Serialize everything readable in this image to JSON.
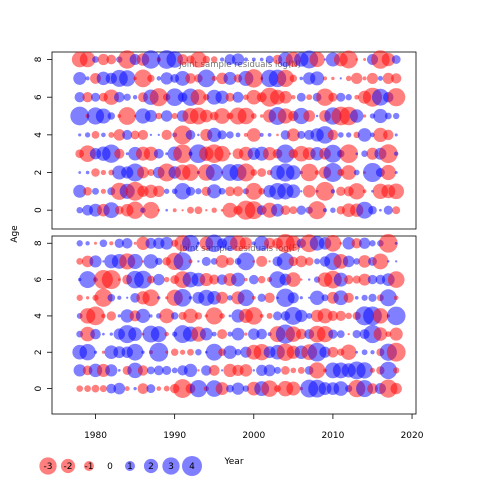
{
  "chart_data": {
    "type": "scatter",
    "title": "",
    "xlabel": "Year",
    "ylabel": "Age",
    "xlim": [
      1974.5,
      2020.5
    ],
    "x_ticks": [
      1980,
      1990,
      2000,
      2010,
      2020
    ],
    "x_tick_labels": [
      "1980",
      "1990",
      "2000",
      "2010",
      "2020"
    ],
    "ages": [
      0,
      1,
      2,
      3,
      4,
      5,
      6,
      7,
      8
    ],
    "y_ticks": [
      0,
      2,
      4,
      6,
      8
    ],
    "y_tick_labels": [
      "0",
      "2",
      "4",
      "6",
      "8"
    ],
    "panels": [
      {
        "subtitle": "Joint sample residuals log(N)",
        "ylim": [
          -1,
          8.4
        ],
        "year_start": 1978,
        "year_end": 2018,
        "seed": 7
      },
      {
        "subtitle": "Joint sample residuals log(F)",
        "ylim": [
          -1.4,
          8.4
        ],
        "year_start": 1978,
        "year_end": 2018,
        "seed": 23
      }
    ],
    "encoding": {
      "positive_color": "#0000ff",
      "negative_color": "#ff0000",
      "fill_opacity": 0.5
    },
    "legend": {
      "placement": "bottom-left",
      "values": [
        -3,
        -2,
        -1,
        0,
        1,
        2,
        3,
        4
      ],
      "labels": [
        "-3",
        "-2",
        "-1",
        "0",
        "1",
        "2",
        "3",
        "4"
      ]
    }
  }
}
